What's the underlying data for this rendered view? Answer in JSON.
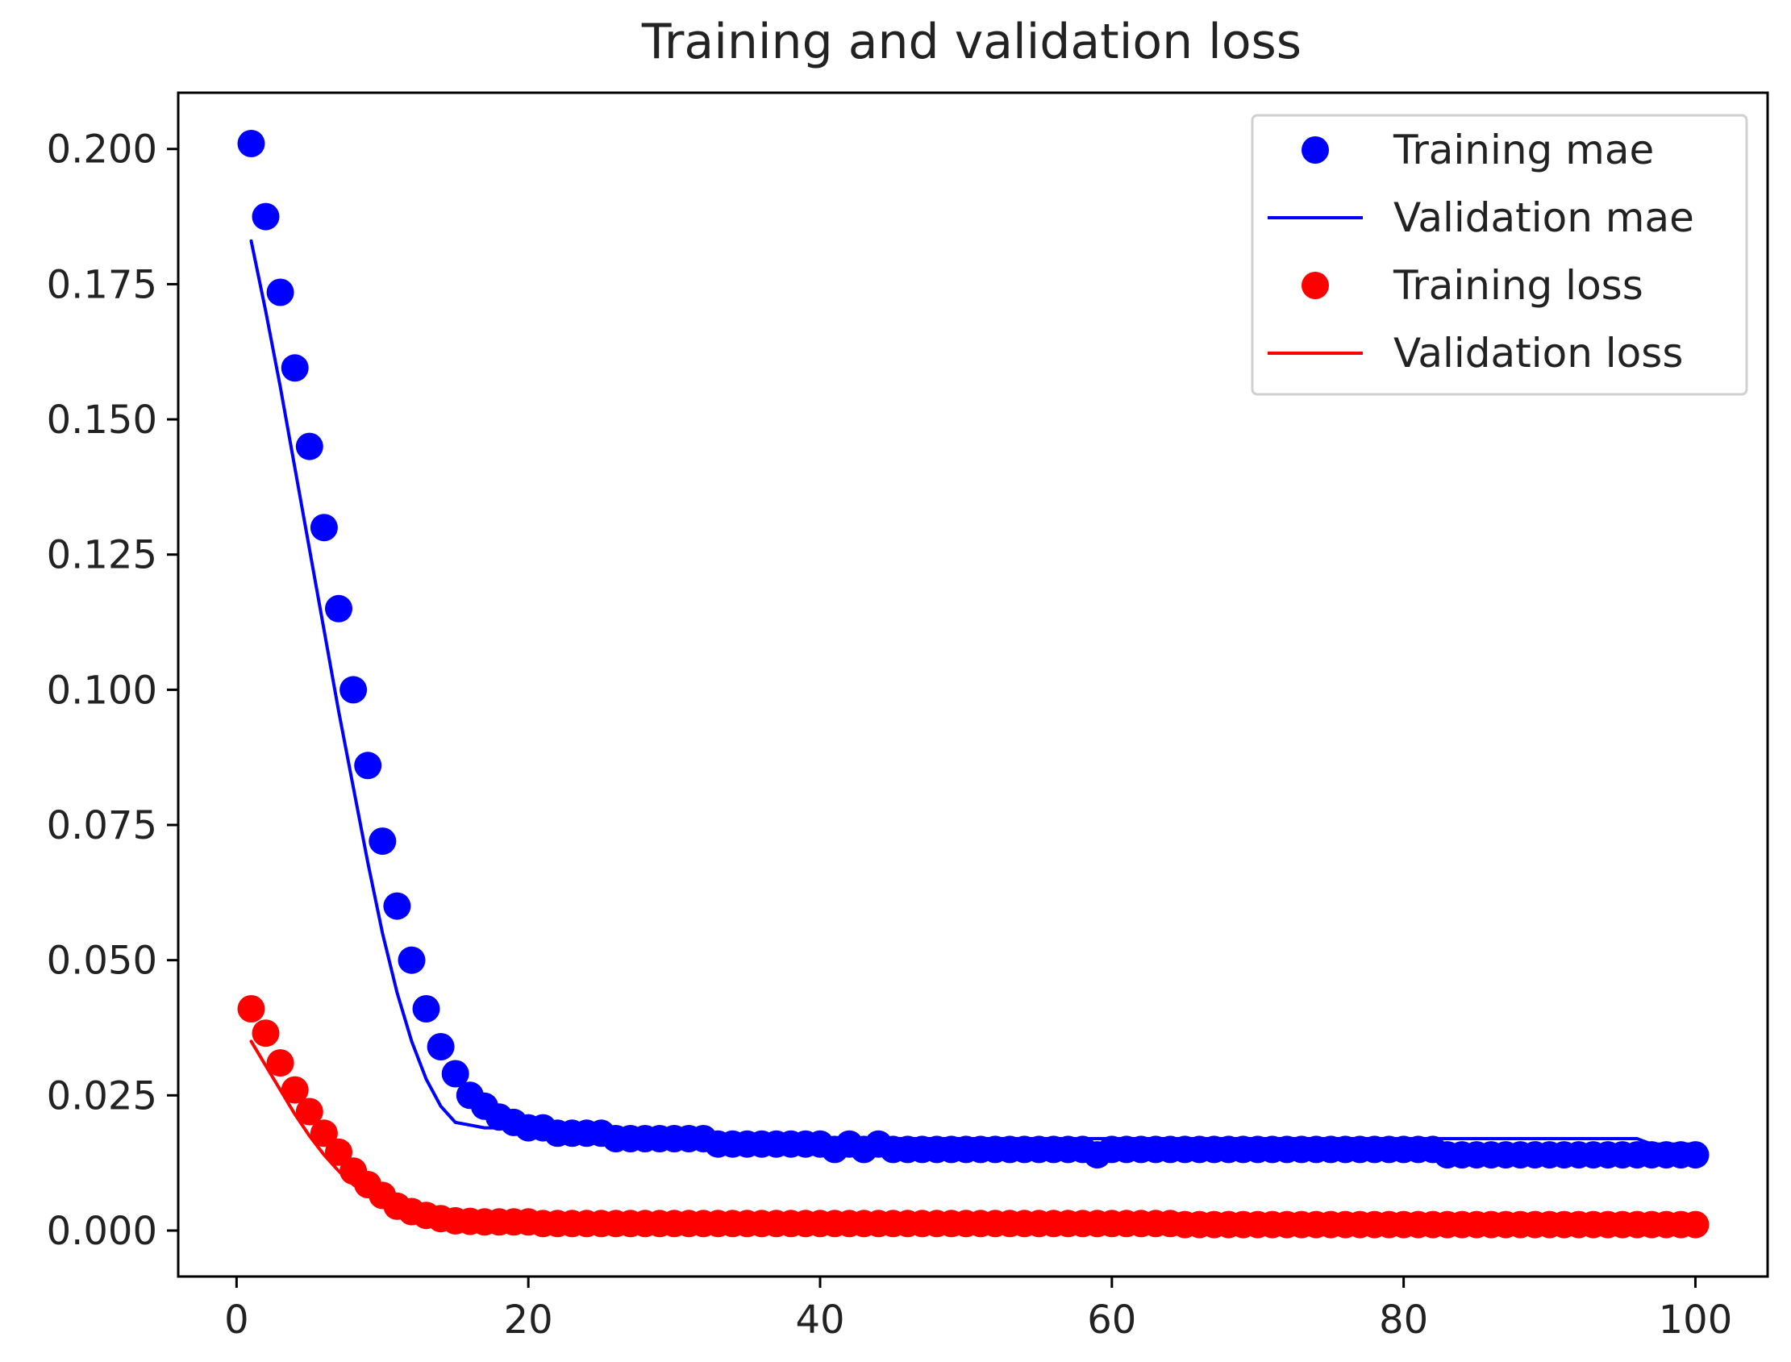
{
  "chart_data": {
    "type": "scatter",
    "title": "Training and validation loss",
    "xlabel": "",
    "ylabel": "",
    "xlim": [
      -4.0,
      104.95
    ],
    "ylim": [
      -0.0085,
      0.2104
    ],
    "xticks": [
      0,
      20,
      40,
      60,
      80,
      100
    ],
    "yticks": [
      0.0,
      0.025,
      0.05,
      0.075,
      0.1,
      0.125,
      0.15,
      0.175,
      0.2
    ],
    "xtick_labels": [
      "0",
      "20",
      "40",
      "60",
      "80",
      "100"
    ],
    "ytick_labels": [
      "0.000",
      "0.025",
      "0.050",
      "0.075",
      "0.100",
      "0.125",
      "0.150",
      "0.175",
      "0.200"
    ],
    "grid": false,
    "legend_position": "top-right",
    "series": [
      {
        "name": "Training mae",
        "kind": "markers",
        "color": "#0000ff",
        "x": [
          1,
          2,
          3,
          4,
          5,
          6,
          7,
          8,
          9,
          10,
          11,
          12,
          13,
          14,
          15,
          16,
          17,
          18,
          19,
          20,
          21,
          22,
          23,
          24,
          25,
          26,
          27,
          28,
          29,
          30,
          31,
          32,
          33,
          34,
          35,
          36,
          37,
          38,
          39,
          40,
          41,
          42,
          43,
          44,
          45,
          46,
          47,
          48,
          49,
          50,
          51,
          52,
          53,
          54,
          55,
          56,
          57,
          58,
          59,
          60,
          61,
          62,
          63,
          64,
          65,
          66,
          67,
          68,
          69,
          70,
          71,
          72,
          73,
          74,
          75,
          76,
          77,
          78,
          79,
          80,
          81,
          82,
          83,
          84,
          85,
          86,
          87,
          88,
          89,
          90,
          91,
          92,
          93,
          94,
          95,
          96,
          97,
          98,
          99,
          100
        ],
        "y": [
          0.201,
          0.1875,
          0.1735,
          0.1595,
          0.145,
          0.13,
          0.115,
          0.1,
          0.086,
          0.072,
          0.06,
          0.05,
          0.041,
          0.034,
          0.029,
          0.025,
          0.023,
          0.021,
          0.02,
          0.019,
          0.019,
          0.018,
          0.018,
          0.018,
          0.018,
          0.017,
          0.017,
          0.017,
          0.017,
          0.017,
          0.017,
          0.017,
          0.016,
          0.016,
          0.016,
          0.016,
          0.016,
          0.016,
          0.016,
          0.016,
          0.015,
          0.016,
          0.015,
          0.016,
          0.015,
          0.015,
          0.015,
          0.015,
          0.015,
          0.015,
          0.015,
          0.015,
          0.015,
          0.015,
          0.015,
          0.015,
          0.015,
          0.015,
          0.014,
          0.015,
          0.015,
          0.015,
          0.015,
          0.015,
          0.015,
          0.015,
          0.015,
          0.015,
          0.015,
          0.015,
          0.015,
          0.015,
          0.015,
          0.015,
          0.015,
          0.015,
          0.015,
          0.015,
          0.015,
          0.015,
          0.015,
          0.015,
          0.014,
          0.014,
          0.014,
          0.014,
          0.014,
          0.014,
          0.014,
          0.014,
          0.014,
          0.014,
          0.014,
          0.014,
          0.014,
          0.014,
          0.014,
          0.014,
          0.014,
          0.014
        ]
      },
      {
        "name": "Validation mae",
        "kind": "line",
        "color": "#0000ff",
        "x": [
          1,
          2,
          3,
          4,
          5,
          6,
          7,
          8,
          9,
          10,
          11,
          12,
          13,
          14,
          15,
          16,
          17,
          18,
          19,
          20,
          21,
          22,
          23,
          24,
          25,
          26,
          27,
          28,
          29,
          30,
          31,
          32,
          33,
          34,
          35,
          36,
          37,
          38,
          39,
          40,
          41,
          42,
          43,
          44,
          45,
          46,
          47,
          48,
          49,
          50,
          51,
          52,
          53,
          54,
          55,
          56,
          57,
          58,
          59,
          60,
          61,
          62,
          63,
          64,
          65,
          66,
          67,
          68,
          69,
          70,
          71,
          72,
          73,
          74,
          75,
          76,
          77,
          78,
          79,
          80,
          81,
          82,
          83,
          84,
          85,
          86,
          87,
          88,
          89,
          90,
          91,
          92,
          93,
          94,
          95,
          96,
          97,
          98,
          99,
          100
        ],
        "y": [
          0.183,
          0.17,
          0.156,
          0.141,
          0.126,
          0.111,
          0.096,
          0.082,
          0.068,
          0.055,
          0.044,
          0.035,
          0.028,
          0.023,
          0.02,
          0.0195,
          0.019,
          0.019,
          0.019,
          0.018,
          0.018,
          0.018,
          0.018,
          0.018,
          0.018,
          0.018,
          0.017,
          0.017,
          0.017,
          0.017,
          0.017,
          0.017,
          0.017,
          0.017,
          0.017,
          0.017,
          0.017,
          0.017,
          0.017,
          0.017,
          0.017,
          0.017,
          0.017,
          0.017,
          0.017,
          0.017,
          0.017,
          0.017,
          0.017,
          0.017,
          0.017,
          0.017,
          0.017,
          0.017,
          0.017,
          0.017,
          0.017,
          0.017,
          0.017,
          0.017,
          0.017,
          0.017,
          0.017,
          0.017,
          0.017,
          0.017,
          0.017,
          0.017,
          0.017,
          0.017,
          0.017,
          0.017,
          0.017,
          0.017,
          0.017,
          0.017,
          0.017,
          0.017,
          0.017,
          0.017,
          0.017,
          0.017,
          0.017,
          0.017,
          0.017,
          0.017,
          0.017,
          0.017,
          0.017,
          0.017,
          0.017,
          0.017,
          0.017,
          0.017,
          0.017,
          0.017,
          0.016,
          0.016,
          0.016,
          0.016
        ]
      },
      {
        "name": "Training loss",
        "kind": "markers",
        "color": "#ff0000",
        "x": [
          1,
          2,
          3,
          4,
          5,
          6,
          7,
          8,
          9,
          10,
          11,
          12,
          13,
          14,
          15,
          16,
          17,
          18,
          19,
          20,
          21,
          22,
          23,
          24,
          25,
          26,
          27,
          28,
          29,
          30,
          31,
          32,
          33,
          34,
          35,
          36,
          37,
          38,
          39,
          40,
          41,
          42,
          43,
          44,
          45,
          46,
          47,
          48,
          49,
          50,
          51,
          52,
          53,
          54,
          55,
          56,
          57,
          58,
          59,
          60,
          61,
          62,
          63,
          64,
          65,
          66,
          67,
          68,
          69,
          70,
          71,
          72,
          73,
          74,
          75,
          76,
          77,
          78,
          79,
          80,
          81,
          82,
          83,
          84,
          85,
          86,
          87,
          88,
          89,
          90,
          91,
          92,
          93,
          94,
          95,
          96,
          97,
          98,
          99,
          100
        ],
        "y": [
          0.041,
          0.0365,
          0.031,
          0.026,
          0.022,
          0.018,
          0.0145,
          0.011,
          0.0085,
          0.0065,
          0.0045,
          0.0035,
          0.0028,
          0.0022,
          0.0018,
          0.0017,
          0.0016,
          0.0016,
          0.0016,
          0.0016,
          0.0013,
          0.0013,
          0.0013,
          0.0013,
          0.0013,
          0.0013,
          0.0013,
          0.0013,
          0.0013,
          0.0013,
          0.0013,
          0.0013,
          0.0013,
          0.0013,
          0.0013,
          0.0013,
          0.0013,
          0.0013,
          0.0013,
          0.0013,
          0.0013,
          0.0013,
          0.0013,
          0.0013,
          0.0013,
          0.0013,
          0.0013,
          0.0013,
          0.0013,
          0.0013,
          0.0013,
          0.0013,
          0.0013,
          0.0013,
          0.0013,
          0.0013,
          0.0013,
          0.0013,
          0.0013,
          0.0013,
          0.0013,
          0.0013,
          0.0013,
          0.0013,
          0.0011,
          0.0011,
          0.0011,
          0.0011,
          0.0011,
          0.0011,
          0.0011,
          0.0011,
          0.0011,
          0.0011,
          0.0011,
          0.0011,
          0.0011,
          0.0011,
          0.0011,
          0.0011,
          0.0011,
          0.0011,
          0.0011,
          0.0011,
          0.0011,
          0.0011,
          0.0011,
          0.0011,
          0.0011,
          0.0011,
          0.0011,
          0.0011,
          0.0011,
          0.0011,
          0.0011,
          0.0011,
          0.0011,
          0.0011,
          0.0011,
          0.0011
        ]
      },
      {
        "name": "Validation loss",
        "kind": "line",
        "color": "#ff0000",
        "x": [
          1,
          2,
          3,
          4,
          5,
          6,
          7,
          8,
          9,
          10,
          11,
          12,
          13,
          14,
          15,
          16,
          17,
          18,
          19,
          20,
          21,
          22,
          23,
          24,
          25,
          26,
          27,
          28,
          29,
          30,
          31,
          32,
          33,
          34,
          35,
          36,
          37,
          38,
          39,
          40,
          41,
          42,
          43,
          44,
          45,
          46,
          47,
          48,
          49,
          50,
          51,
          52,
          53,
          54,
          55,
          56,
          57,
          58,
          59,
          60,
          61,
          62,
          63,
          64,
          65,
          66,
          67,
          68,
          69,
          70,
          71,
          72,
          73,
          74,
          75,
          76,
          77,
          78,
          79,
          80,
          81,
          82,
          83,
          84,
          85,
          86,
          87,
          88,
          89,
          90,
          91,
          92,
          93,
          94,
          95,
          96,
          97,
          98,
          99,
          100
        ],
        "y": [
          0.035,
          0.0305,
          0.026,
          0.0215,
          0.0175,
          0.014,
          0.011,
          0.0085,
          0.0065,
          0.0048,
          0.0035,
          0.0026,
          0.002,
          0.0016,
          0.0014,
          0.0013,
          0.0013,
          0.0013,
          0.0012,
          0.0012,
          0.0012,
          0.0012,
          0.0012,
          0.0012,
          0.0012,
          0.0012,
          0.0012,
          0.0012,
          0.0012,
          0.0012,
          0.0012,
          0.0012,
          0.0012,
          0.0012,
          0.0012,
          0.0012,
          0.0012,
          0.0012,
          0.0012,
          0.0012,
          0.0012,
          0.0012,
          0.0012,
          0.0012,
          0.0012,
          0.0012,
          0.0012,
          0.0012,
          0.0012,
          0.0012,
          0.0012,
          0.0012,
          0.0012,
          0.0012,
          0.0012,
          0.0012,
          0.0012,
          0.0012,
          0.0012,
          0.0012,
          0.0012,
          0.0012,
          0.0012,
          0.0012,
          0.0011,
          0.0011,
          0.0011,
          0.0011,
          0.0011,
          0.0011,
          0.0011,
          0.0011,
          0.0011,
          0.0011,
          0.0011,
          0.0011,
          0.0011,
          0.0011,
          0.0011,
          0.0011,
          0.0011,
          0.0011,
          0.0011,
          0.0011,
          0.0011,
          0.0011,
          0.0011,
          0.0011,
          0.0011,
          0.0011,
          0.0011,
          0.0011,
          0.0011,
          0.0011,
          0.0011,
          0.0011,
          0.0011,
          0.0011,
          0.0011,
          0.0011
        ]
      }
    ]
  }
}
